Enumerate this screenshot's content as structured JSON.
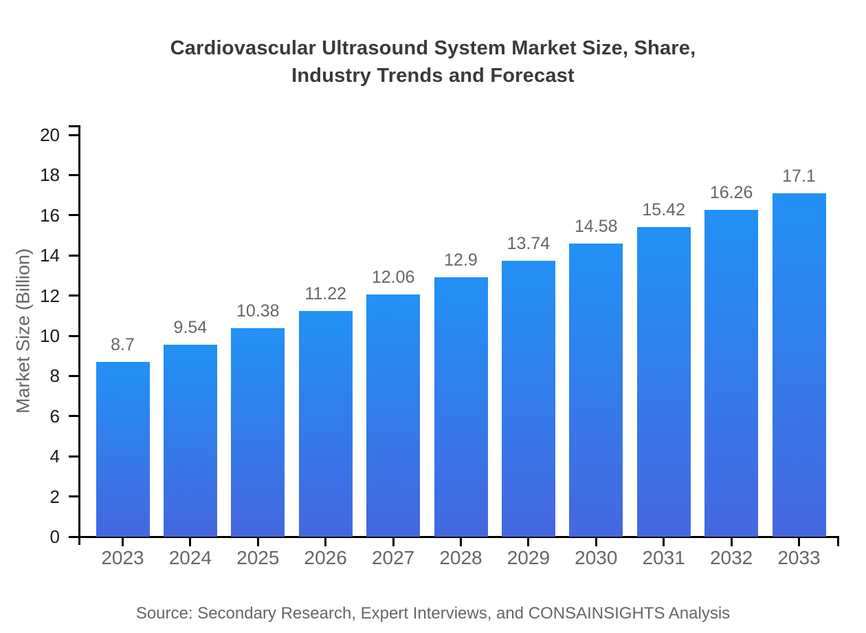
{
  "chart_data": {
    "type": "bar",
    "title": "Cardiovascular Ultrasound System Market Size, Share, Industry Trends and Forecast",
    "title_lines": [
      "Cardiovascular Ultrasound System Market Size, Share,",
      "Industry Trends and Forecast"
    ],
    "categories": [
      "2023",
      "2024",
      "2025",
      "2026",
      "2027",
      "2028",
      "2029",
      "2030",
      "2031",
      "2032",
      "2033"
    ],
    "values": [
      8.7,
      9.54,
      10.38,
      11.22,
      12.06,
      12.9,
      13.74,
      14.58,
      15.42,
      16.26,
      17.1
    ],
    "value_labels": [
      "8.7",
      "9.54",
      "10.38",
      "11.22",
      "12.06",
      "12.9",
      "13.74",
      "14.58",
      "15.42",
      "16.26",
      "17.1"
    ],
    "xlabel": "",
    "ylabel": "Market Size (Billion)",
    "ylim": [
      0,
      20
    ],
    "yticks": [
      0,
      2,
      4,
      6,
      8,
      10,
      12,
      14,
      16,
      18,
      20
    ],
    "grid": false,
    "legend": false,
    "source": "Source: Secondary Research, Expert Interviews, and CONSAINSIGHTS Analysis",
    "colors": {
      "bar_gradient_top": "#2191F5",
      "bar_gradient_bottom": "#4567E0",
      "axis": "#000000",
      "ytick_label": "#1a1a1a",
      "category_label": "#666666",
      "value_label": "#666666",
      "title": "#3a3a3a",
      "source": "#666666"
    }
  }
}
